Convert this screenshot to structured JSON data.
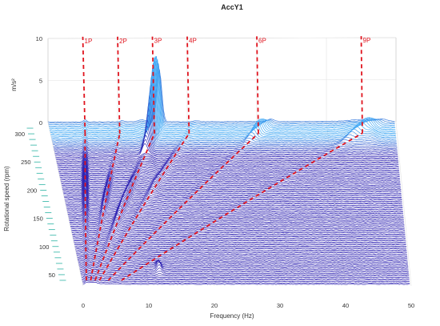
{
  "chart_data": {
    "type": "waterfall",
    "title": "AccY1",
    "xlabel": "Frequency (Hz)",
    "ylabel": "Rotational speed (rpm)",
    "zlabel": "m/s²",
    "x_ticks": [
      "0",
      "10",
      "20",
      "30",
      "40",
      "50"
    ],
    "y_ticks": [
      "50",
      "100",
      "150",
      "200",
      "250",
      "300"
    ],
    "z_ticks": [
      "0",
      "5",
      "10"
    ],
    "xlim": [
      0,
      50
    ],
    "ylim": [
      30,
      320
    ],
    "zlim": [
      0,
      10
    ],
    "grid": true,
    "line_color_low": "#2a1fb0",
    "line_color_high": "#3fa9f5",
    "order_line_color": "#e0141e",
    "orders": [
      {
        "label": "1P",
        "multiple": 1
      },
      {
        "label": "2P",
        "multiple": 2
      },
      {
        "label": "3P",
        "multiple": 3
      },
      {
        "label": "4P",
        "multiple": 4
      },
      {
        "label": "6P",
        "multiple": 6
      },
      {
        "label": "9P",
        "multiple": 9
      }
    ],
    "notable_peaks": [
      {
        "frequency_hz": 10.2,
        "rpm": 300,
        "amplitude": 9.5
      },
      {
        "frequency_hz": 10.0,
        "rpm": 290,
        "amplitude": 7.6
      },
      {
        "frequency_hz": 5.5,
        "rpm": 180,
        "amplitude": 1.2
      },
      {
        "frequency_hz": 2.8,
        "rpm": 200,
        "amplitude": 1.5
      },
      {
        "frequency_hz": 12.0,
        "rpm": 60,
        "amplitude": 1.0
      },
      {
        "frequency_hz": 28.5,
        "rpm": 300,
        "amplitude": 2.2
      },
      {
        "frequency_hz": 44.0,
        "rpm": 300,
        "amplitude": 1.5
      }
    ]
  }
}
